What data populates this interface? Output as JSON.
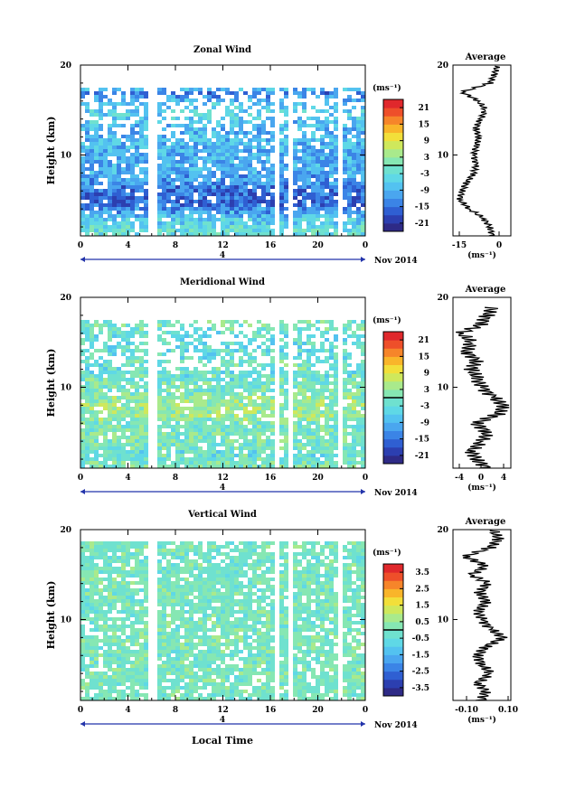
{
  "footer_label": "Local Time",
  "date_label": "Nov 2014",
  "day_marker": "4",
  "panels": [
    {
      "title": "Zonal Wind",
      "ylabel": "Height (km)",
      "yticks": [
        "20",
        "10"
      ],
      "xticks": [
        "0",
        "4",
        "8",
        "12",
        "16",
        "20",
        "0"
      ],
      "units": "(ms⁻¹)",
      "colorbar_ticks": [
        "21",
        "15",
        "9",
        "3",
        "-3",
        "-9",
        "-15",
        "-21"
      ],
      "avg_title": "Average",
      "avg_yticks": [
        "20",
        "10"
      ],
      "avg_xticks": [
        "-15",
        "0"
      ],
      "avg_units": "(ms⁻¹)"
    },
    {
      "title": "Meridional Wind",
      "ylabel": "Height (km)",
      "yticks": [
        "20",
        "10"
      ],
      "xticks": [
        "0",
        "4",
        "8",
        "12",
        "16",
        "20",
        "0"
      ],
      "units": "(ms⁻¹)",
      "colorbar_ticks": [
        "21",
        "15",
        "9",
        "3",
        "-3",
        "-9",
        "-15",
        "-21"
      ],
      "avg_title": "Average",
      "avg_yticks": [
        "20",
        "10"
      ],
      "avg_xticks": [
        "-4",
        "0",
        "4"
      ],
      "avg_units": "(ms⁻¹)"
    },
    {
      "title": "Vertical Wind",
      "ylabel": "Height (km)",
      "yticks": [
        "20",
        "10"
      ],
      "xticks": [
        "0",
        "4",
        "8",
        "12",
        "16",
        "20",
        "0"
      ],
      "units": "(ms⁻¹)",
      "colorbar_ticks": [
        "3.5",
        "2.5",
        "1.5",
        "0.5",
        "-0.5",
        "-1.5",
        "-2.5",
        "-3.5"
      ],
      "avg_title": "Average",
      "avg_yticks": [
        "20",
        "10"
      ],
      "avg_xticks": [
        "-0.10",
        "0.10"
      ],
      "avg_units": "(ms⁻¹)"
    }
  ],
  "chart_data": [
    {
      "type": "heatmap",
      "title": "Zonal Wind",
      "ylabel": "Height (km)",
      "xlabel": "",
      "xlim_hours": [
        0,
        24
      ],
      "ylim_km": [
        1,
        20
      ],
      "colorbar_range": [
        -24,
        24
      ],
      "valid_height_km": [
        1,
        17.5
      ],
      "gaps_hours": [
        [
          5.7,
          6.1
        ],
        [
          16.3,
          16.7
        ],
        [
          17.5,
          17.8
        ],
        [
          21.5,
          21.8
        ]
      ],
      "mean_profile": {
        "height_km": [
          1,
          2,
          3,
          4,
          5,
          6,
          7,
          8,
          9,
          10,
          11,
          12,
          13,
          14,
          15,
          16,
          17,
          18,
          19,
          20
        ],
        "value": [
          -2,
          -3,
          -6,
          -12,
          -16,
          -15,
          -13,
          -10,
          -9,
          -10,
          -9,
          -8,
          -9,
          -7,
          -5,
          -8,
          -15,
          -3,
          -1,
          0
        ]
      }
    },
    {
      "type": "heatmap",
      "title": "Meridional Wind",
      "ylabel": "Height (km)",
      "xlabel": "",
      "xlim_hours": [
        0,
        24
      ],
      "ylim_km": [
        1,
        20
      ],
      "colorbar_range": [
        -24,
        24
      ],
      "valid_height_km": [
        1,
        17.5
      ],
      "gaps_hours": [
        [
          5.7,
          6.1
        ],
        [
          16.3,
          16.7
        ],
        [
          17.5,
          17.8
        ],
        [
          21.5,
          21.8
        ]
      ],
      "mean_profile": {
        "height_km": [
          1,
          2,
          3,
          4,
          5,
          6,
          7,
          8,
          9,
          10,
          11,
          12,
          13,
          14,
          15,
          16,
          17,
          18,
          19
        ],
        "value": [
          1,
          -1,
          -2,
          0,
          1,
          -1,
          3,
          4,
          2,
          0,
          -1,
          -2,
          -1,
          -3,
          -2,
          -4,
          0,
          1,
          2
        ]
      }
    },
    {
      "type": "heatmap",
      "title": "Vertical Wind",
      "ylabel": "Height (km)",
      "xlabel": "Local Time",
      "xlim_hours": [
        0,
        24
      ],
      "ylim_km": [
        1,
        20
      ],
      "colorbar_range": [
        -4,
        4
      ],
      "valid_height_km": [
        1,
        19
      ],
      "gaps_hours": [
        [
          5.7,
          6.1
        ],
        [
          16.3,
          16.7
        ],
        [
          17.5,
          17.8
        ],
        [
          21.5,
          21.8
        ]
      ],
      "mean_profile": {
        "height_km": [
          1,
          2,
          3,
          4,
          5,
          6,
          7,
          8,
          9,
          10,
          11,
          12,
          13,
          14,
          15,
          16,
          17,
          18,
          19,
          20
        ],
        "value": [
          0.0,
          0.02,
          -0.02,
          0.04,
          0.0,
          -0.02,
          0.02,
          0.1,
          0.04,
          0.0,
          -0.02,
          0.02,
          -0.01,
          0.03,
          -0.05,
          0.02,
          -0.08,
          0.04,
          0.08,
          0.05
        ]
      }
    }
  ]
}
